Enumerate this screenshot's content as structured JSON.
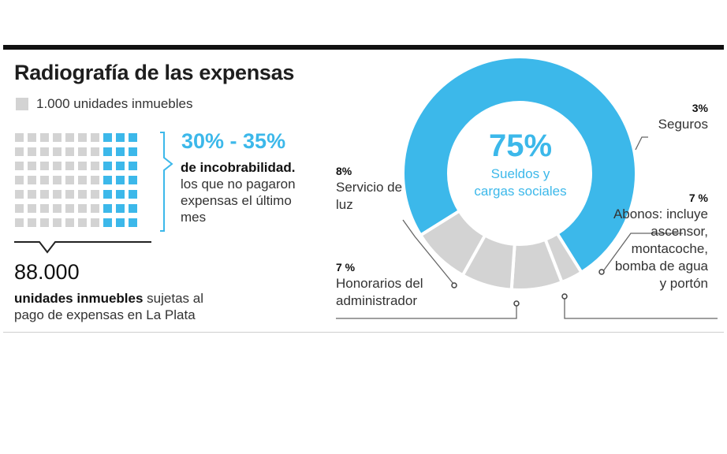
{
  "header": {
    "title": "Radiografía de las expensas",
    "legend_label": "1.000 unidades inmuebles"
  },
  "waffle": {
    "rows": 7,
    "cols": 10,
    "highlight_cols": 3,
    "color_default": "#d3d3d3",
    "color_highlight": "#3cb8ea"
  },
  "incobrabilidad": {
    "range": "30% - 35%",
    "title": "de incobrabilidad.",
    "desc": "los que no pagaron expensas el último mes"
  },
  "total": {
    "value": "88.000",
    "bold": "unidades inmuebles",
    "rest": " sujetas al pago de expensas en La Plata"
  },
  "chart_data": {
    "type": "pie",
    "title": "",
    "slices": [
      {
        "pct": "75%",
        "value": 75,
        "label": "Sueldos y cargas sociales",
        "color": "#3cb8ea"
      },
      {
        "pct": "3%",
        "value": 3,
        "label": "Seguros",
        "color": "#d3d3d3"
      },
      {
        "pct": "7 %",
        "value": 7,
        "label": "Abonos: incluye ascensor, montacoche, bomba de agua y portón",
        "color": "#d3d3d3"
      },
      {
        "pct": "7 %",
        "value": 7,
        "label": "Honorarios del administrador",
        "color": "#d3d3d3"
      },
      {
        "pct": "8%",
        "value": 8,
        "label": "Servicio de luz",
        "color": "#d3d3d3"
      }
    ]
  },
  "labels": {
    "center_pct": "75%",
    "center_text": "Sueldos y cargas sociales",
    "seguros_pct": "3%",
    "seguros_text": "Seguros",
    "abonos_pct": "7 %",
    "abonos_text": "Abonos: incluye ascensor, montacoche, bomba de agua y portón",
    "honorarios_pct": "7 %",
    "honorarios_text": "Honorarios del administrador",
    "luz_pct": "8%",
    "luz_text": "Servicio de luz"
  }
}
